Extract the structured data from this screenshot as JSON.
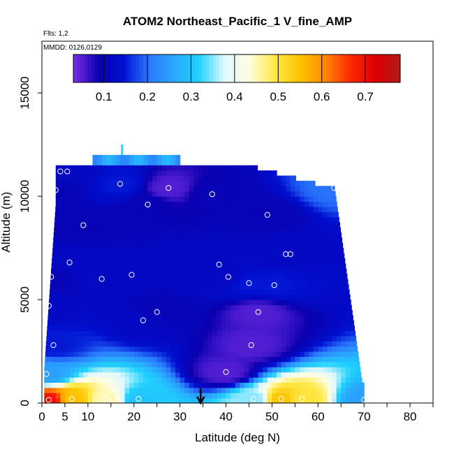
{
  "chart_data": {
    "type": "heatmap",
    "title": "ATOM2 Northeast_Pacific_1 V_fine_AMP",
    "flights_label": "Flts: 1,2",
    "dates_label": "MMDD: 0126,0129",
    "xlabel": "Latitude (deg N)",
    "ylabel": "Altitude (m)",
    "xlim": [
      0,
      85
    ],
    "ylim": [
      0,
      17500
    ],
    "x_ticks": [
      0,
      5,
      10,
      20,
      30,
      40,
      50,
      60,
      70,
      80
    ],
    "y_ticks": [
      0,
      5000,
      10000,
      15000
    ],
    "colorbar": {
      "min": 0.03,
      "max": 0.78,
      "ticks": [
        0.1,
        0.2,
        0.3,
        0.4,
        0.5,
        0.6,
        0.7
      ],
      "colors": [
        "#7a2fe6",
        "#0a00b0",
        "#0010d0",
        "#2a78ff",
        "#2aa8ff",
        "#20d2ff",
        "#dff8ff",
        "#fffde0",
        "#ffe94a",
        "#ffc400",
        "#ff8a00",
        "#ff2a00",
        "#dd0000",
        "#b01a1a"
      ]
    },
    "marker_latitude": 34.5,
    "profiles": [
      {
        "lat": 1.5,
        "alt": 150,
        "value": 0.7
      },
      {
        "lat": 1,
        "alt": 1400,
        "value": 0.25
      },
      {
        "lat": 2.5,
        "alt": 2800,
        "value": 0.15
      },
      {
        "lat": 1.5,
        "alt": 4700,
        "value": 0.12
      },
      {
        "lat": 2,
        "alt": 6100,
        "value": 0.1
      },
      {
        "lat": 6.5,
        "alt": 200,
        "value": 0.55
      },
      {
        "lat": 6,
        "alt": 6800,
        "value": 0.12
      },
      {
        "lat": 9,
        "alt": 8600,
        "value": 0.1
      },
      {
        "lat": 3,
        "alt": 10300,
        "value": 0.1
      },
      {
        "lat": 4,
        "alt": 11200,
        "value": 0.12
      },
      {
        "lat": 5.5,
        "alt": 11200,
        "value": 0.12
      },
      {
        "lat": 14,
        "alt": 200,
        "value": 0.45
      },
      {
        "lat": 13,
        "alt": 6000,
        "value": 0.12
      },
      {
        "lat": 17,
        "alt": 10600,
        "value": 0.15
      },
      {
        "lat": 19.5,
        "alt": 6200,
        "value": 0.12
      },
      {
        "lat": 21,
        "alt": 200,
        "value": 0.3
      },
      {
        "lat": 22,
        "alt": 4000,
        "value": 0.12
      },
      {
        "lat": 23,
        "alt": 9600,
        "value": 0.1
      },
      {
        "lat": 25,
        "alt": 4400,
        "value": 0.1
      },
      {
        "lat": 27.5,
        "alt": 10400,
        "value": 0.05
      },
      {
        "lat": 37,
        "alt": 10100,
        "value": 0.1
      },
      {
        "lat": 38.5,
        "alt": 6700,
        "value": 0.12
      },
      {
        "lat": 40.5,
        "alt": 6100,
        "value": 0.12
      },
      {
        "lat": 40,
        "alt": 1500,
        "value": 0.05
      },
      {
        "lat": 45,
        "alt": 5800,
        "value": 0.15
      },
      {
        "lat": 45.5,
        "alt": 2800,
        "value": 0.05
      },
      {
        "lat": 46,
        "alt": 200,
        "value": 0.35
      },
      {
        "lat": 47,
        "alt": 4400,
        "value": 0.05
      },
      {
        "lat": 49,
        "alt": 9100,
        "value": 0.1
      },
      {
        "lat": 50.5,
        "alt": 5700,
        "value": 0.15
      },
      {
        "lat": 52,
        "alt": 200,
        "value": 0.55
      },
      {
        "lat": 53,
        "alt": 7200,
        "value": 0.12
      },
      {
        "lat": 54,
        "alt": 7200,
        "value": 0.12
      },
      {
        "lat": 56.5,
        "alt": 200,
        "value": 0.5
      },
      {
        "lat": 63.5,
        "alt": 10400,
        "value": 0.2
      },
      {
        "lat": 70,
        "alt": 150,
        "value": 0.25
      }
    ]
  }
}
